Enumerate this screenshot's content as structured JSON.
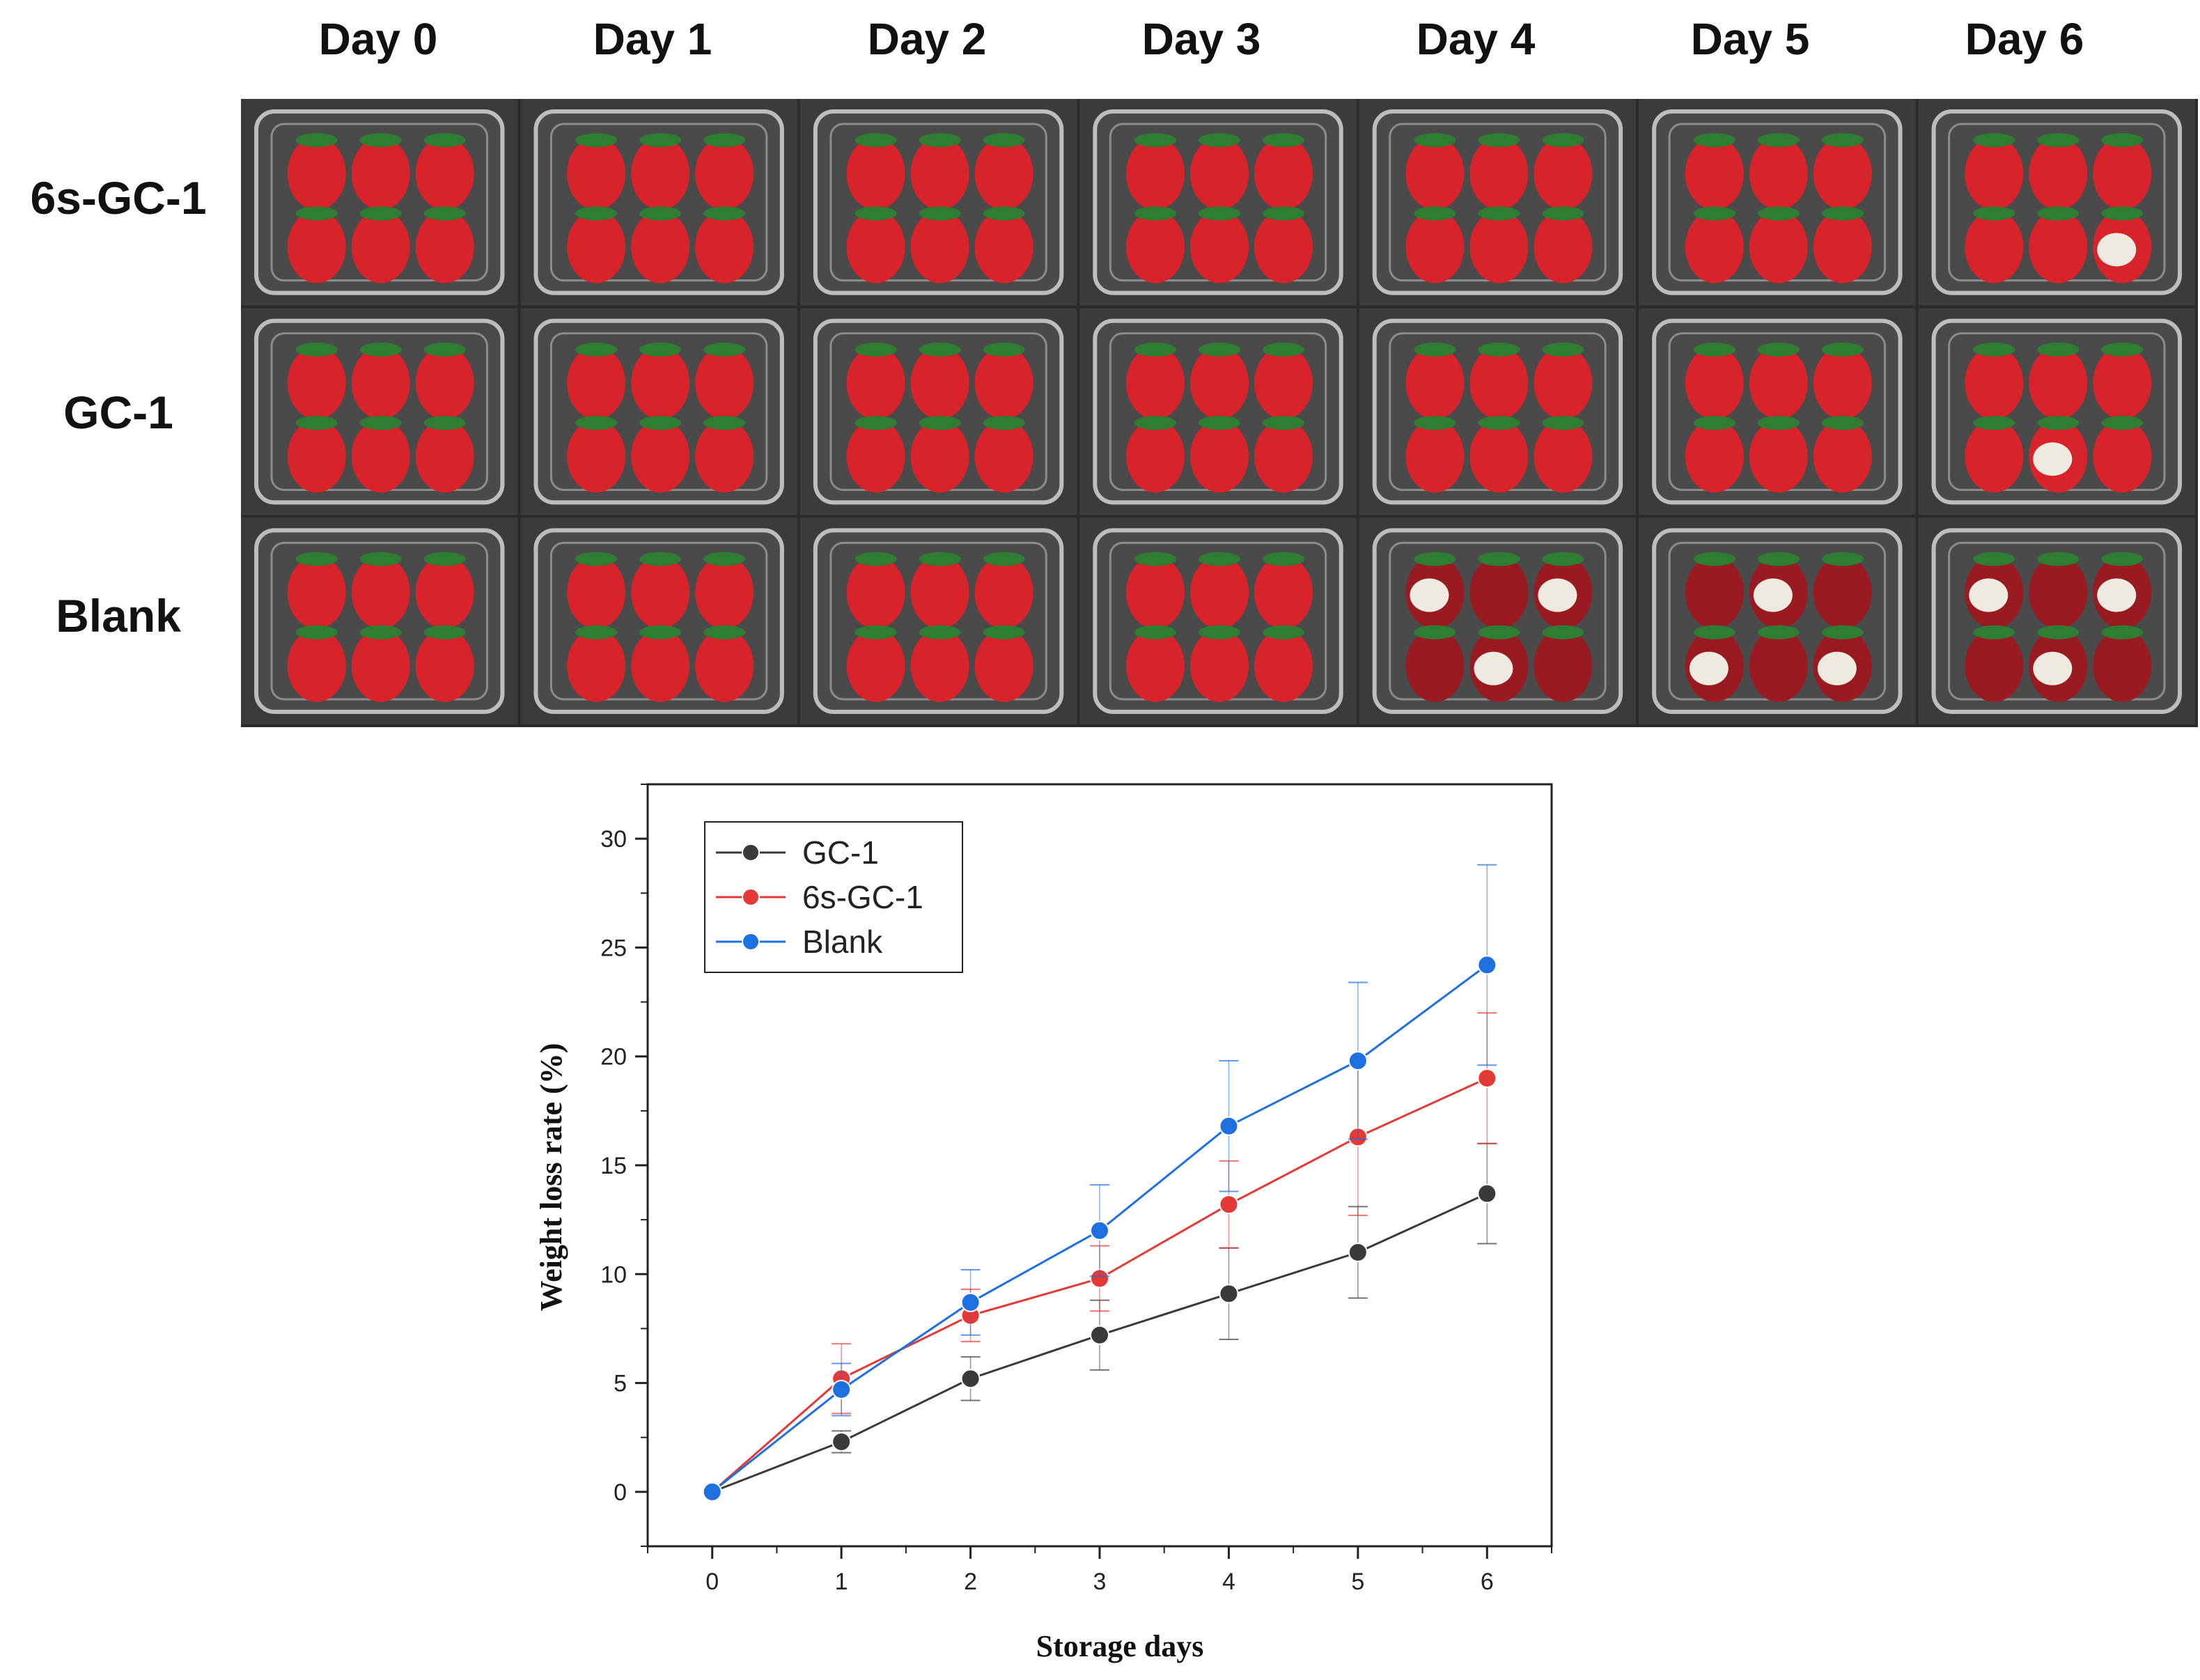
{
  "columns": [
    "Day 0",
    "Day 1",
    "Day 2",
    "Day 3",
    "Day 4",
    "Day 5",
    "Day 6"
  ],
  "rows": [
    "6s-GC-1",
    "GC-1",
    "Blank"
  ],
  "colors": {
    "GC-1": "#3a3a3a",
    "6s-GC-1": "#e53935",
    "Blank": "#1e6fe0",
    "strawberry": "#d8232a",
    "mold": "#eeeae0"
  },
  "chart_data": {
    "type": "line",
    "title": "",
    "xlabel": "Storage days",
    "ylabel": "Weight loss rate (%)",
    "x": [
      0,
      1,
      2,
      3,
      4,
      5,
      6
    ],
    "xlim": [
      -0.5,
      6.5
    ],
    "ylim": [
      -2.5,
      32.5
    ],
    "xticks": [
      0,
      1,
      2,
      3,
      4,
      5,
      6
    ],
    "yticks": [
      0,
      5,
      10,
      15,
      20,
      25,
      30
    ],
    "legend": "top-left",
    "series": [
      {
        "name": "GC-1",
        "color": "#3a3a3a",
        "values": [
          0,
          2.3,
          5.2,
          7.2,
          9.1,
          11.0,
          13.7
        ],
        "errors": [
          0,
          0.5,
          1.0,
          1.6,
          2.1,
          2.1,
          2.3
        ]
      },
      {
        "name": "6s-GC-1",
        "color": "#e53935",
        "values": [
          0,
          5.2,
          8.1,
          9.8,
          13.2,
          16.3,
          19.0
        ],
        "errors": [
          0,
          1.6,
          1.2,
          1.5,
          2.0,
          3.6,
          3.0
        ]
      },
      {
        "name": "Blank",
        "color": "#1e6fe0",
        "values": [
          0,
          4.7,
          8.7,
          12.0,
          16.8,
          19.8,
          24.2
        ],
        "errors": [
          0,
          1.2,
          1.5,
          2.1,
          3.0,
          3.6,
          4.6
        ]
      }
    ]
  }
}
